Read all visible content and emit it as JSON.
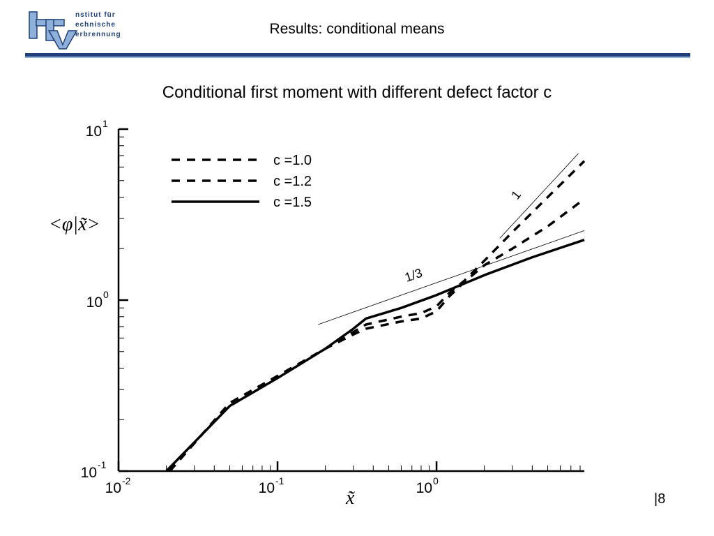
{
  "header": {
    "logo_lines": [
      "nstitut für",
      "echnische",
      "erbrennung"
    ],
    "logo_letters": [
      "I",
      "T",
      "V"
    ],
    "title": "Results: conditional means"
  },
  "page_number": "8",
  "colors": {
    "brand": "#1f3f7a",
    "brand_light": "#8fb0d9",
    "line": "#000000"
  },
  "chart_data": {
    "type": "line",
    "title": "Conditional first moment with different defect factor c",
    "xlabel": "x̃",
    "ylabel": "<φ|x̃>",
    "xscale": "log",
    "yscale": "log",
    "xlim": [
      0.01,
      8.5
    ],
    "ylim": [
      0.1,
      10
    ],
    "x_ticks": [
      {
        "base": "10",
        "exp": "-2",
        "value": 0.01
      },
      {
        "base": "10",
        "exp": "-1",
        "value": 0.1
      },
      {
        "base": "10",
        "exp": "0",
        "value": 1
      }
    ],
    "y_ticks": [
      {
        "base": "10",
        "exp": "-1",
        "value": 0.1
      },
      {
        "base": "10",
        "exp": "0",
        "value": 1
      },
      {
        "base": "10",
        "exp": "1",
        "value": 10
      }
    ],
    "legend_position": "top-left",
    "series": [
      {
        "name": "c =1.0",
        "style": "dashed",
        "x": [
          0.021,
          0.05,
          0.1,
          0.2,
          0.3,
          0.36,
          0.6,
          0.8,
          1.0,
          1.2,
          1.5,
          2.0,
          3.0,
          5.0,
          8.5
        ],
        "y": [
          0.1,
          0.25,
          0.36,
          0.52,
          0.65,
          0.72,
          0.8,
          0.84,
          0.92,
          1.1,
          1.3,
          1.7,
          2.5,
          4.0,
          6.5
        ]
      },
      {
        "name": "c =1.2",
        "style": "dashed",
        "x": [
          0.021,
          0.05,
          0.1,
          0.2,
          0.3,
          0.36,
          0.6,
          0.8,
          1.0,
          1.2,
          1.5,
          2.0,
          3.0,
          5.0,
          8.5
        ],
        "y": [
          0.1,
          0.25,
          0.36,
          0.52,
          0.63,
          0.68,
          0.75,
          0.78,
          0.86,
          1.05,
          1.28,
          1.6,
          2.0,
          2.7,
          3.9
        ]
      },
      {
        "name": "c =1.5",
        "style": "solid",
        "x": [
          0.02,
          0.05,
          0.1,
          0.2,
          0.3,
          0.36,
          0.6,
          1.0,
          2.0,
          4.0,
          8.5
        ],
        "y": [
          0.1,
          0.24,
          0.35,
          0.52,
          0.68,
          0.78,
          0.9,
          1.07,
          1.4,
          1.78,
          2.25
        ]
      }
    ],
    "reference_lines": [
      {
        "label": "1/3",
        "x": [
          0.18,
          8.5
        ],
        "y": [
          0.72,
          2.55
        ]
      },
      {
        "label": "1",
        "x": [
          2.5,
          7.8
        ],
        "y": [
          2.3,
          7.2
        ]
      }
    ]
  }
}
